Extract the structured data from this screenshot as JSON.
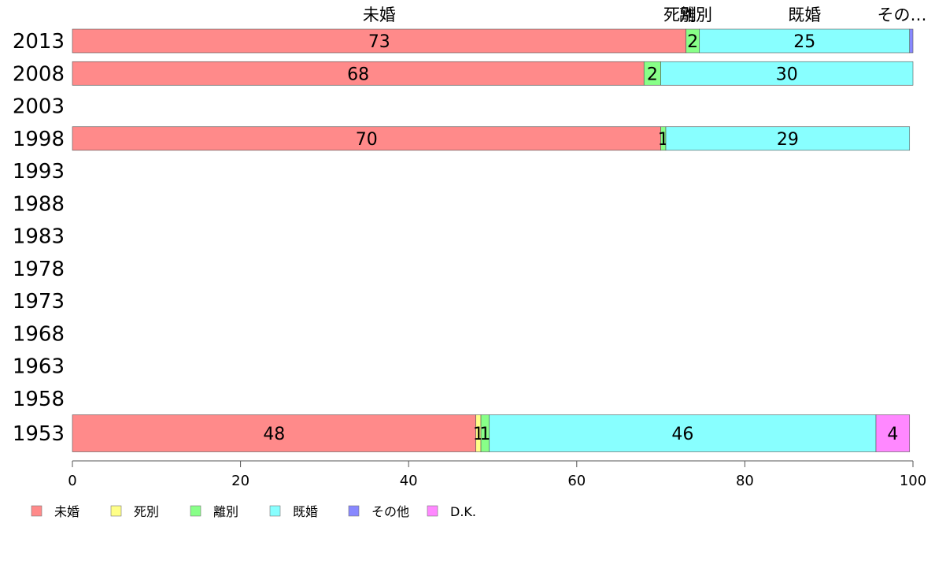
{
  "chart_data": {
    "type": "bar",
    "orientation": "horizontal",
    "stacked": true,
    "categories": [
      "2013",
      "2008",
      "2003",
      "1998",
      "1993",
      "1988",
      "1983",
      "1978",
      "1973",
      "1968",
      "1963",
      "1958",
      "1953"
    ],
    "series": [
      {
        "name": "未婚",
        "color": "#ff8a8a",
        "values": [
          73,
          68,
          null,
          70,
          null,
          null,
          null,
          null,
          null,
          null,
          null,
          null,
          48
        ]
      },
      {
        "name": "死別",
        "color": "#ffff88",
        "values": [
          0,
          0,
          null,
          0,
          null,
          null,
          null,
          null,
          null,
          null,
          null,
          null,
          0.6
        ]
      },
      {
        "name": "離別",
        "color": "#88ff88",
        "values": [
          1.6,
          2,
          null,
          0.6,
          null,
          null,
          null,
          null,
          null,
          null,
          null,
          null,
          1
        ]
      },
      {
        "name": "既婚",
        "color": "#88ffff",
        "values": [
          25,
          30,
          null,
          29,
          null,
          null,
          null,
          null,
          null,
          null,
          null,
          null,
          46
        ]
      },
      {
        "name": "その他",
        "color": "#8888ff",
        "values": [
          0.4,
          0,
          null,
          0,
          null,
          null,
          null,
          null,
          null,
          null,
          null,
          null,
          0
        ]
      },
      {
        "name": "D.K.",
        "color": "#ff88ff",
        "values": [
          0,
          0,
          null,
          0,
          null,
          null,
          null,
          null,
          null,
          null,
          null,
          null,
          4
        ]
      }
    ],
    "bar_labels": [
      [
        "73",
        "",
        "2",
        "25",
        "",
        ""
      ],
      [
        "68",
        "",
        "2",
        "30",
        "",
        ""
      ],
      [],
      [
        "70",
        "",
        "1",
        "29",
        "",
        ""
      ],
      [],
      [],
      [],
      [],
      [],
      [],
      [],
      [],
      [
        "48",
        "1",
        "1",
        "46",
        "",
        "4"
      ]
    ],
    "top_labels": [
      "未婚",
      "死別",
      "離別",
      "既婚",
      "その…"
    ],
    "xlim": [
      0,
      100
    ],
    "xticks": [
      0,
      20,
      40,
      60,
      80,
      100
    ],
    "legend_position": "bottom-left",
    "grid": false
  }
}
